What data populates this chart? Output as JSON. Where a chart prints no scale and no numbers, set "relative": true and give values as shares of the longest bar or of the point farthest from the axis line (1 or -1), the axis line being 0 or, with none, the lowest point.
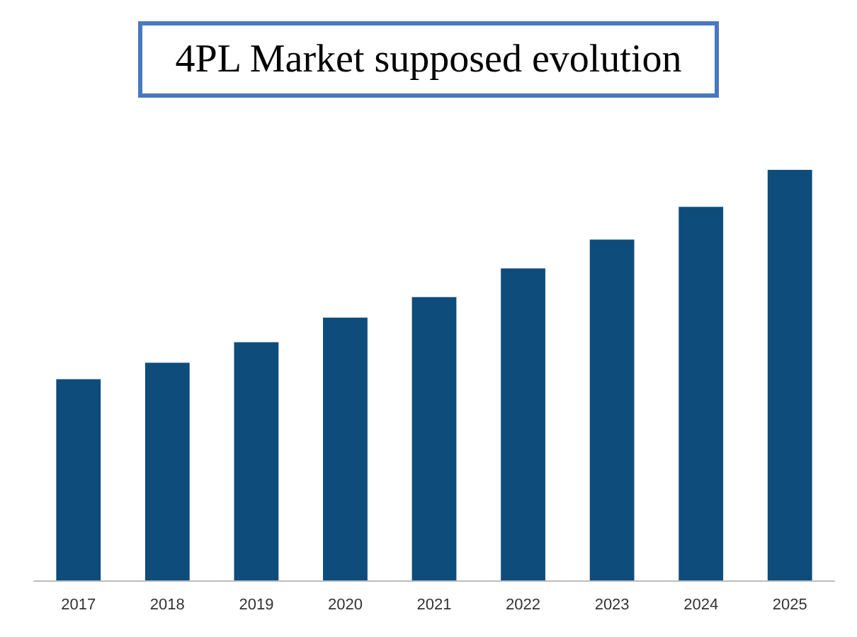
{
  "chart_data": {
    "type": "bar",
    "title": "4PL Market supposed evolution",
    "categories": [
      "2017",
      "2018",
      "2019",
      "2020",
      "2021",
      "2022",
      "2023",
      "2024",
      "2025"
    ],
    "values": [
      0.49,
      0.53,
      0.58,
      0.64,
      0.69,
      0.76,
      0.83,
      0.91,
      1
    ],
    "color": "#0e4c7c",
    "relative": true
  }
}
